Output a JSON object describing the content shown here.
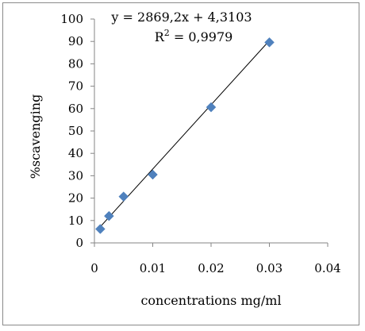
{
  "chart_data": {
    "type": "scatter",
    "title": "",
    "xlabel": "concentrations mg/ml",
    "ylabel": "%scavenging",
    "xlim": [
      0,
      0.04
    ],
    "ylim": [
      0,
      100
    ],
    "x_ticks": [
      "0",
      "0.01",
      "0.02",
      "0.03",
      "0.04"
    ],
    "y_ticks": [
      "0",
      "10",
      "20",
      "30",
      "40",
      "50",
      "60",
      "70",
      "80",
      "90",
      "100"
    ],
    "series": [
      {
        "x": [
          0.001,
          0.0025,
          0.005,
          0.01,
          0.02,
          0.03
        ],
        "y": [
          6.2,
          12.0,
          20.7,
          30.5,
          60.6,
          89.6
        ],
        "marker": "diamond",
        "color": "#4f81bd"
      }
    ],
    "trendline": {
      "slope": 2869.2,
      "intercept": 4.3103,
      "x_range": [
        0.0005,
        0.03
      ],
      "color": "#000000"
    },
    "equation_text": "y = 2869,2x + 4,3103",
    "r2_label": "R",
    "r2_superscript": "2",
    "r2_value_text": " = 0,9979",
    "grid": false,
    "legend": "none"
  }
}
